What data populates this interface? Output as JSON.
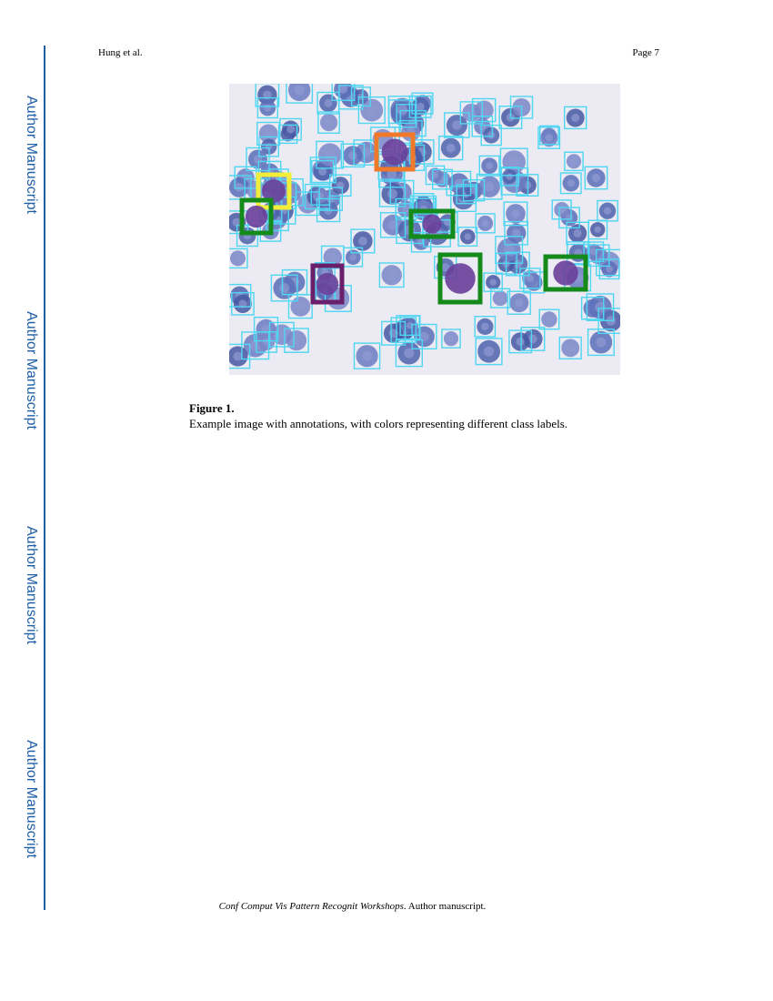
{
  "running_head": {
    "author": "Hung et al.",
    "page": "Page 7"
  },
  "side_banner": {
    "labels": [
      "Author Manuscript",
      "Author Manuscript",
      "Author Manuscript",
      "Author Manuscript"
    ],
    "color": "#1f5fa8"
  },
  "figure": {
    "label": "Figure 1.",
    "caption": "Example image with annotations, with colors representing different class labels.",
    "box_colors": {
      "default": "#4fd6f2",
      "yellow": "#f2ec3a",
      "orange": "#f07a2a",
      "green": "#148a1a",
      "purple": "#6a1f6a"
    }
  },
  "footer": {
    "journal": "Conf Comput Vis Pattern Recognit Workshops",
    "note": ". Author manuscript."
  }
}
